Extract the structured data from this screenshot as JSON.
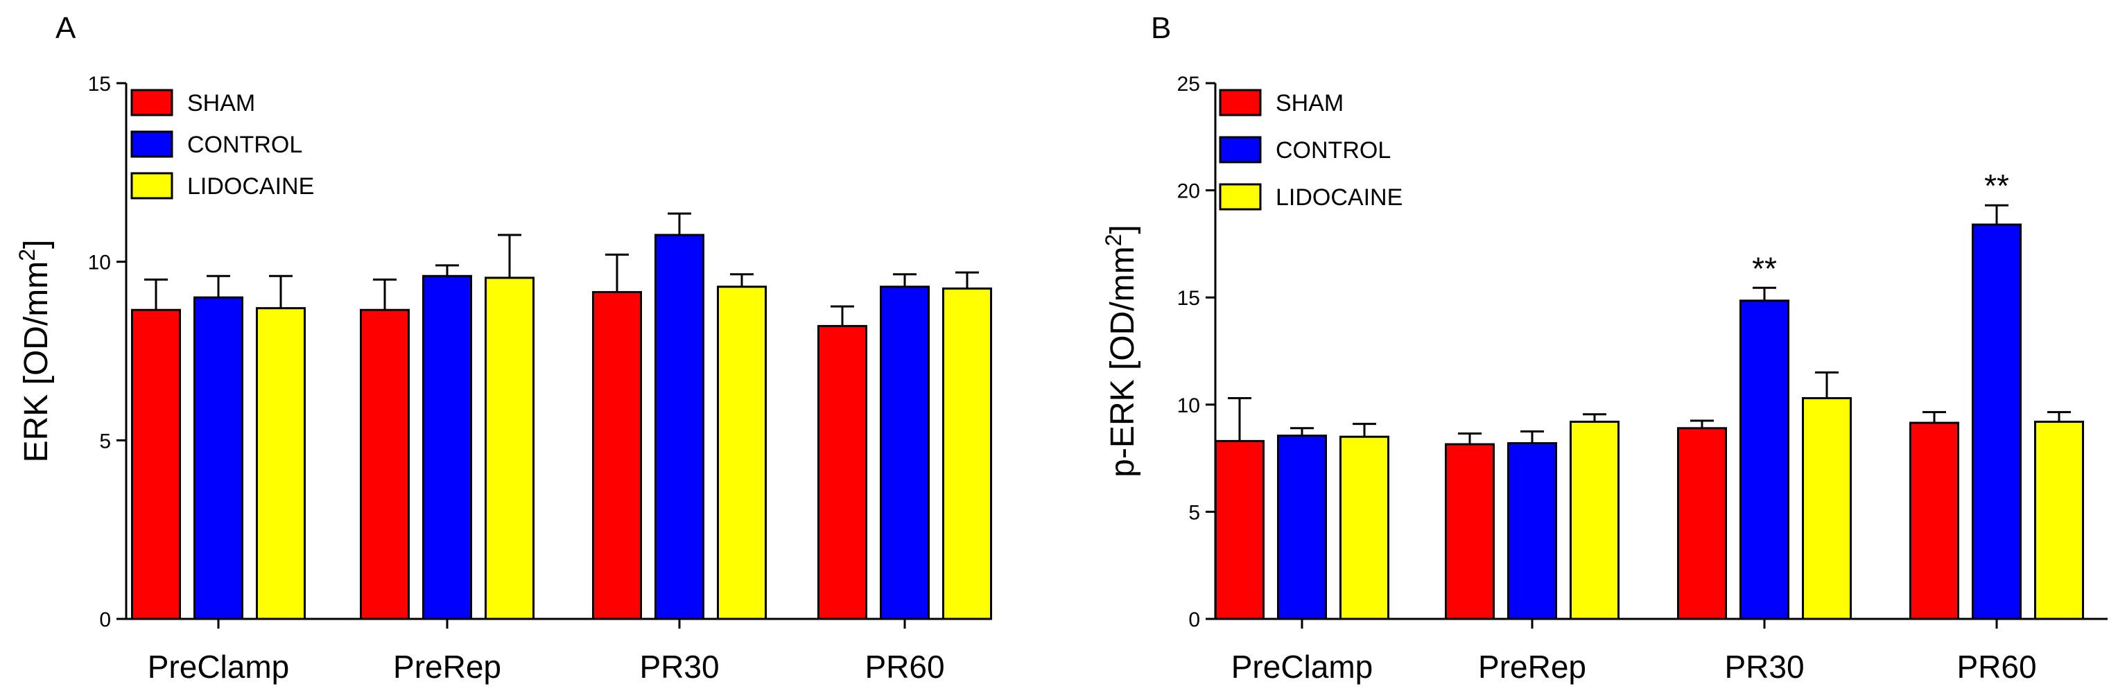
{
  "chart_data": [
    {
      "type": "bar",
      "panel_label": "A",
      "ylabel": "ERK [OD/mm",
      "ylabel_sup": "2",
      "ylabel_close": "]",
      "ylim": [
        0,
        15
      ],
      "yticks": [
        0,
        5,
        10,
        15
      ],
      "categories": [
        "PreClamp",
        "PreRep",
        "PR30",
        "PR60"
      ],
      "legend_position": "top-left",
      "series": [
        {
          "name": "SHAM",
          "color": "#ff0000",
          "values": [
            8.65,
            8.65,
            9.15,
            8.2
          ],
          "errors": [
            0.85,
            0.85,
            1.05,
            0.55
          ]
        },
        {
          "name": "CONTROL",
          "color": "#0000ff",
          "values": [
            9.0,
            9.6,
            10.75,
            9.3
          ],
          "errors": [
            0.6,
            0.3,
            0.6,
            0.35
          ]
        },
        {
          "name": "LIDOCAINE",
          "color": "#ffff00",
          "values": [
            8.7,
            9.55,
            9.3,
            9.25
          ],
          "errors": [
            0.9,
            1.2,
            0.35,
            0.45
          ]
        }
      ],
      "annotations": []
    },
    {
      "type": "bar",
      "panel_label": "B",
      "ylabel": "p-ERK [OD/mm",
      "ylabel_sup": "2",
      "ylabel_close": "]",
      "ylim": [
        0,
        25
      ],
      "yticks": [
        0,
        5,
        10,
        15,
        20,
        25
      ],
      "categories": [
        "PreClamp",
        "PreRep",
        "PR30",
        "PR60"
      ],
      "legend_position": "top-left",
      "series": [
        {
          "name": "SHAM",
          "color": "#ff0000",
          "values": [
            8.3,
            8.15,
            8.9,
            9.15
          ],
          "errors": [
            2.0,
            0.5,
            0.35,
            0.5
          ]
        },
        {
          "name": "CONTROL",
          "color": "#0000ff",
          "values": [
            8.55,
            8.2,
            14.85,
            18.4
          ],
          "errors": [
            0.35,
            0.55,
            0.6,
            0.9
          ]
        },
        {
          "name": "LIDOCAINE",
          "color": "#ffff00",
          "values": [
            8.5,
            9.2,
            10.3,
            9.2
          ],
          "errors": [
            0.6,
            0.35,
            1.2,
            0.45
          ]
        }
      ],
      "annotations": [
        {
          "category": 2,
          "series": 1,
          "text": "**"
        },
        {
          "category": 3,
          "series": 1,
          "text": "**"
        }
      ]
    }
  ]
}
